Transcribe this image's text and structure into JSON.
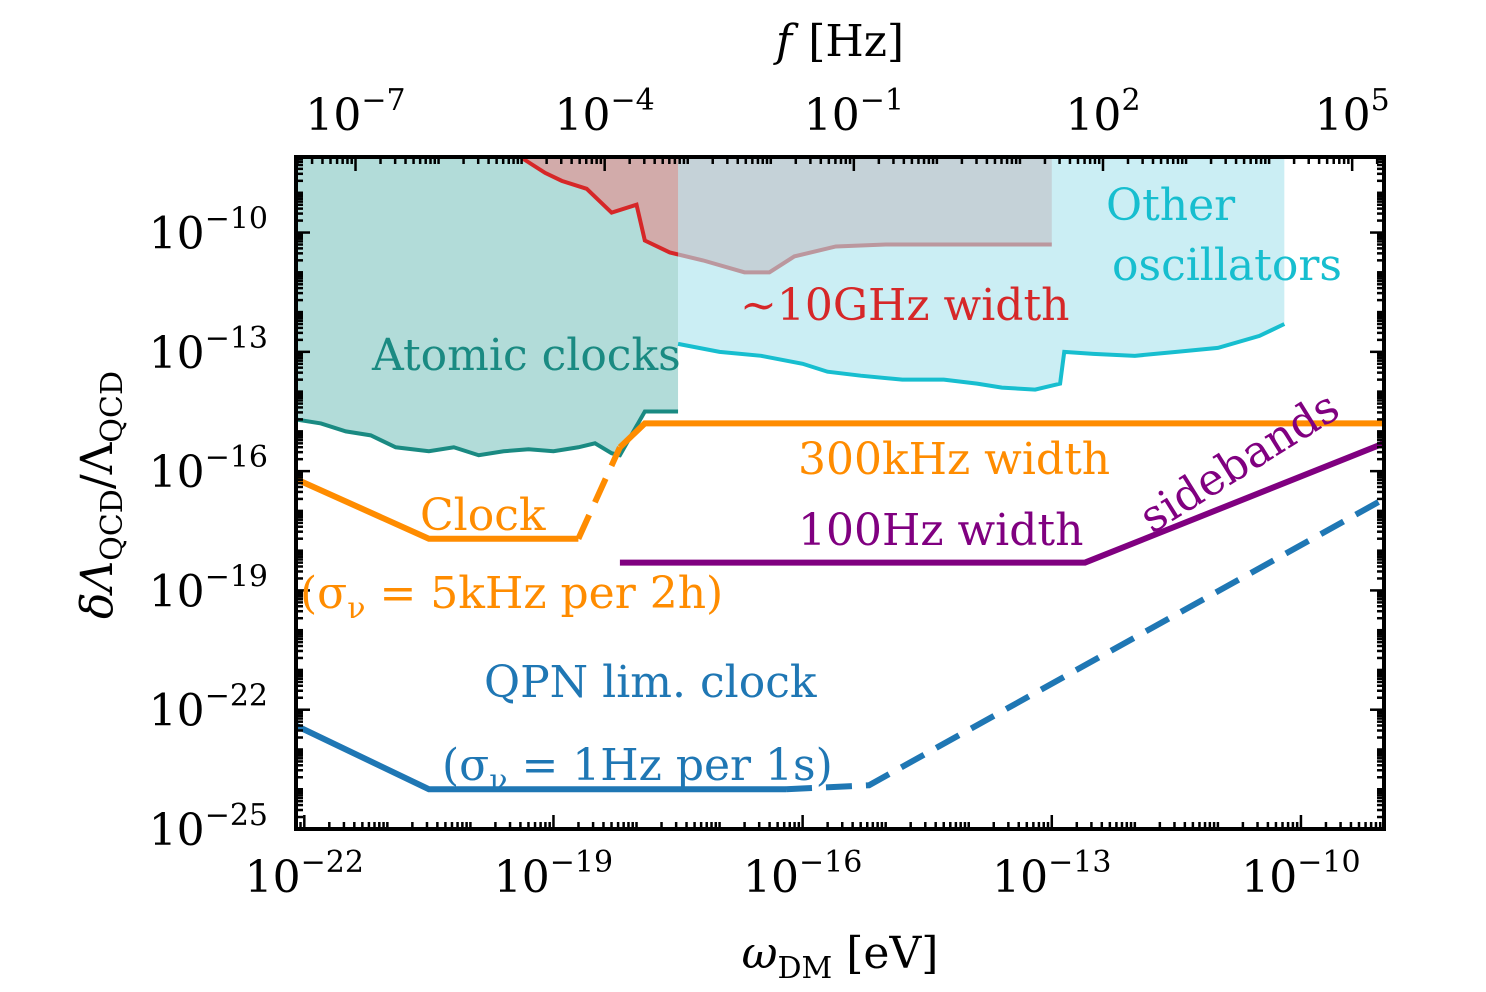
{
  "chart_data": {
    "type": "line",
    "scale": "log-log",
    "xlabel": "ω_DM [eV]",
    "xlabel_parts": {
      "main": "ω",
      "sub": "DM",
      "unit": "[eV]"
    },
    "ylabel": "δΛ_QCD/Λ_QCD",
    "ylabel_parts": {
      "pre": "δΛ",
      "sub1": "QCD",
      "mid": "/Λ",
      "sub2": "QCD"
    },
    "top_xlabel": "f [Hz]",
    "top_xlabel_parts": {
      "main": "f",
      "unit": "[Hz]"
    },
    "xlim_log10": [
      -22.1,
      -9.0
    ],
    "ylim_log10": [
      -25.0,
      -8.1
    ],
    "x_ticks": [
      {
        "log10": -22,
        "base": "10",
        "exp": "−22"
      },
      {
        "log10": -19,
        "base": "10",
        "exp": "−19"
      },
      {
        "log10": -16,
        "base": "10",
        "exp": "−16"
      },
      {
        "log10": -13,
        "base": "10",
        "exp": "−13"
      },
      {
        "log10": -10,
        "base": "10",
        "exp": "−10"
      }
    ],
    "y_ticks": [
      {
        "log10": -10,
        "base": "10",
        "exp": "−10"
      },
      {
        "log10": -13,
        "base": "10",
        "exp": "−13"
      },
      {
        "log10": -16,
        "base": "10",
        "exp": "−16"
      },
      {
        "log10": -19,
        "base": "10",
        "exp": "−19"
      },
      {
        "log10": -22,
        "base": "10",
        "exp": "−22"
      },
      {
        "log10": -25,
        "base": "10",
        "exp": "−25"
      }
    ],
    "top_ticks": [
      {
        "log10_f": -7,
        "base": "10",
        "exp": "−7"
      },
      {
        "log10_f": -4,
        "base": "10",
        "exp": "−4"
      },
      {
        "log10_f": -1,
        "base": "10",
        "exp": "−1"
      },
      {
        "log10_f": 2,
        "base": "10",
        "exp": "2"
      },
      {
        "log10_f": 5,
        "base": "10",
        "exp": "5"
      }
    ],
    "regions": [
      {
        "name": "Atomic clocks",
        "color": "#7fc4c0",
        "edge": "#1a8a82",
        "boundary_log10": [
          [
            -22.1,
            -14.7
          ],
          [
            -21.8,
            -14.8
          ],
          [
            -21.5,
            -15.0
          ],
          [
            -21.2,
            -15.1
          ],
          [
            -20.9,
            -15.4
          ],
          [
            -20.5,
            -15.5
          ],
          [
            -20.2,
            -15.4
          ],
          [
            -19.9,
            -15.6
          ],
          [
            -19.6,
            -15.5
          ],
          [
            -19.3,
            -15.45
          ],
          [
            -19.0,
            -15.5
          ],
          [
            -18.7,
            -15.4
          ],
          [
            -18.5,
            -15.3
          ],
          [
            -18.3,
            -15.55
          ],
          [
            -18.2,
            -15.6
          ],
          [
            -17.9,
            -14.5
          ],
          [
            -17.5,
            -14.5
          ]
        ],
        "top_log10": -8.1
      },
      {
        "name": "~10GHz width",
        "color": "#e88a8a",
        "edge": "#d62728",
        "boundary_log10": [
          [
            -19.4,
            -8.1
          ],
          [
            -19.1,
            -8.5
          ],
          [
            -18.9,
            -8.7
          ],
          [
            -18.6,
            -8.9
          ],
          [
            -18.3,
            -9.5
          ],
          [
            -18.0,
            -9.3
          ],
          [
            -17.9,
            -10.2
          ],
          [
            -17.6,
            -10.5
          ],
          [
            -17.2,
            -10.7
          ],
          [
            -16.7,
            -11.0
          ],
          [
            -16.4,
            -11.0
          ],
          [
            -16.1,
            -10.6
          ],
          [
            -15.6,
            -10.35
          ],
          [
            -15.0,
            -10.3
          ],
          [
            -14.5,
            -10.3
          ],
          [
            -13.0,
            -10.3
          ]
        ],
        "top_log10": -8.1
      },
      {
        "name": "Other oscillators",
        "name_lines": [
          "Other",
          "oscillators"
        ],
        "color": "#a8e3ec",
        "edge": "#17becf",
        "boundary_log10": [
          [
            -17.5,
            -12.8
          ],
          [
            -17.0,
            -13.0
          ],
          [
            -16.5,
            -13.1
          ],
          [
            -16.0,
            -13.3
          ],
          [
            -15.7,
            -13.5
          ],
          [
            -15.3,
            -13.6
          ],
          [
            -14.8,
            -13.7
          ],
          [
            -14.3,
            -13.7
          ],
          [
            -13.9,
            -13.8
          ],
          [
            -13.6,
            -13.9
          ],
          [
            -13.2,
            -13.95
          ],
          [
            -12.9,
            -13.8
          ],
          [
            -12.85,
            -13.0
          ],
          [
            -12.5,
            -13.05
          ],
          [
            -12.0,
            -13.1
          ],
          [
            -11.5,
            -13.0
          ],
          [
            -11.0,
            -12.9
          ],
          [
            -10.5,
            -12.6
          ],
          [
            -10.2,
            -12.3
          ]
        ],
        "top_log10": -8.1
      }
    ],
    "series": [
      {
        "name": "300kHz width",
        "color": "#ff8c00",
        "style": "solid",
        "points_log10": [
          [
            -18.2,
            -15.4
          ],
          [
            -17.9,
            -14.8
          ],
          [
            -9.0,
            -14.8
          ]
        ]
      },
      {
        "name": "Clock (σ_ν = 5kHz per 2h)",
        "color": "#ff8c00",
        "style": "solid",
        "points_log10": [
          [
            -22.1,
            -16.2
          ],
          [
            -20.5,
            -17.7
          ],
          [
            -18.7,
            -17.7
          ]
        ]
      },
      {
        "name": "Clock (σ_ν = 5kHz per 2h)",
        "color": "#ff8c00",
        "style": "dashed",
        "points_log10": [
          [
            -18.7,
            -17.7
          ],
          [
            -18.2,
            -15.4
          ]
        ]
      },
      {
        "name": "100Hz width",
        "color": "#800080",
        "style": "solid",
        "points_log10": [
          [
            -18.2,
            -18.3
          ],
          [
            -12.6,
            -18.3
          ],
          [
            -9.0,
            -15.3
          ]
        ]
      },
      {
        "name": "QPN lim. clock (σ_ν = 1Hz per 1s)",
        "color": "#1f77b4",
        "style": "solid",
        "points_log10": [
          [
            -22.1,
            -22.4
          ],
          [
            -20.5,
            -24.0
          ],
          [
            -16.2,
            -24.0
          ]
        ]
      },
      {
        "name": "QPN lim. clock (σ_ν = 1Hz per 1s)",
        "color": "#1f77b4",
        "style": "dashed",
        "points_log10": [
          [
            -16.2,
            -24.0
          ],
          [
            -15.2,
            -23.9
          ],
          [
            -9.0,
            -16.7
          ]
        ]
      }
    ],
    "annotations": [
      {
        "text": "Atomic clocks",
        "color": "#1a8a82"
      },
      {
        "text": "~10GHz width",
        "color": "#d62728"
      },
      {
        "text": "Other",
        "color": "#17becf"
      },
      {
        "text": "oscillators",
        "color": "#17becf"
      },
      {
        "text": "300kHz width",
        "color": "#ff8c00"
      },
      {
        "text": "Clock",
        "color": "#ff8c00"
      },
      {
        "text": "(σ_ν = 5kHz per 2h)",
        "color": "#ff8c00",
        "parts": {
          "open": "(σ",
          "sub": "ν",
          "rest": " = 5kHz per 2h)"
        }
      },
      {
        "text": "100Hz width",
        "color": "#800080"
      },
      {
        "text": "sidebands",
        "color": "#800080"
      },
      {
        "text": "QPN lim. clock",
        "color": "#1f77b4"
      },
      {
        "text": "(σ_ν = 1Hz per 1s)",
        "color": "#1f77b4",
        "parts": {
          "open": "(σ",
          "sub": "ν",
          "rest": " = 1Hz per 1s)"
        }
      }
    ]
  }
}
